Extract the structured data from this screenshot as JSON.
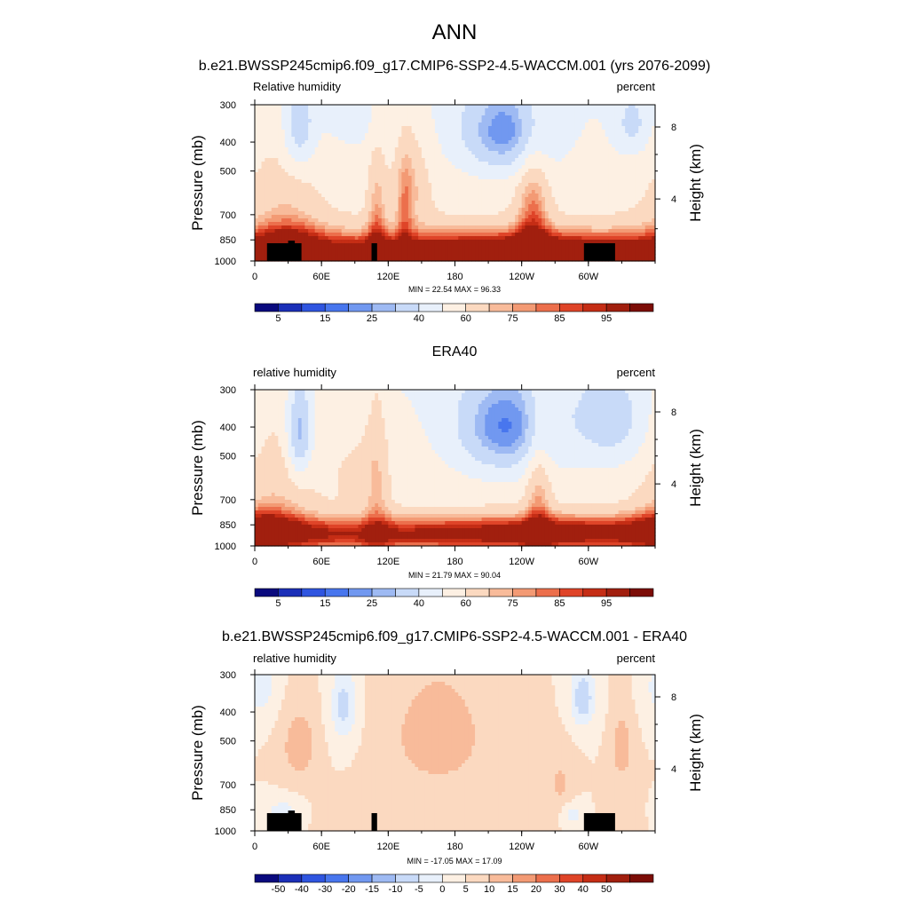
{
  "figure": {
    "title": "ANN"
  },
  "chart_data": [
    {
      "type": "heatmap",
      "subtitle": "b.e21.BWSSP245cmip6.f09_g17.CMIP6-SSP2-4.5-WACCM.001 (yrs 2076-2099)",
      "left_label": "Relative humidity",
      "right_label": "percent",
      "ylabel": "Pressure (mb)",
      "ylabel_right": "Height (km)",
      "x_ticks": [
        "0",
        "60E",
        "120E",
        "180",
        "120W",
        "60W"
      ],
      "y_ticks": [
        "300",
        "400",
        "500",
        "700",
        "850",
        "1000"
      ],
      "height_ticks": [
        "8",
        "4"
      ],
      "stats": "MIN = 22.54  MAX = 96.33",
      "colorbar_labels": [
        "5",
        "15",
        "25",
        "40",
        "60",
        "75",
        "85",
        "95"
      ],
      "palette": [
        "#0a0a7e",
        "#1b2fb8",
        "#2f55e0",
        "#4876ee",
        "#7198f0",
        "#9ebaf3",
        "#c8daf8",
        "#e8f0fb",
        "#fdf0e3",
        "#fbd9c0",
        "#f8bb9a",
        "#f39a74",
        "#ec6f4c",
        "#df4428",
        "#c52d15",
        "#a11f0e",
        "#7c0d07"
      ],
      "topography": true,
      "fields": {
        "blobs": [
          {
            "lon": 125,
            "p": 930,
            "wx": 150,
            "wy": 95,
            "a": 38
          },
          {
            "lon": 275,
            "p": 930,
            "wx": 70,
            "wy": 90,
            "a": 30
          },
          {
            "lon": 30,
            "p": 900,
            "wx": 20,
            "wy": 120,
            "a": 25
          },
          {
            "lon": 250,
            "p": 820,
            "wx": 10,
            "wy": 300,
            "a": 28
          },
          {
            "lon": 110,
            "p": 800,
            "wx": 6,
            "wy": 300,
            "a": 20
          },
          {
            "lon": 135,
            "p": 760,
            "wx": 5,
            "wy": 250,
            "a": 15
          },
          {
            "lon": 140,
            "p": 550,
            "wx": 12,
            "wy": 150,
            "a": 15
          },
          {
            "lon": 25,
            "p": 600,
            "wx": 25,
            "wy": 250,
            "a": 10
          },
          {
            "lon": 225,
            "p": 370,
            "wx": 28,
            "wy": 90,
            "a": -30
          },
          {
            "lon": 40,
            "p": 360,
            "wx": 10,
            "wy": 90,
            "a": -22
          },
          {
            "lon": 340,
            "p": 350,
            "wx": 12,
            "wy": 60,
            "a": -15
          },
          {
            "lon": 90,
            "p": 330,
            "wx": 20,
            "wy": 60,
            "a": -6
          }
        ],
        "base": 50,
        "vert": 0.02
      }
    },
    {
      "type": "heatmap",
      "subtitle": "ERA40",
      "left_label": "relative humidity",
      "right_label": "percent",
      "ylabel": "Pressure (mb)",
      "ylabel_right": "Height (km)",
      "x_ticks": [
        "0",
        "60E",
        "120E",
        "180",
        "120W",
        "60W"
      ],
      "y_ticks": [
        "300",
        "400",
        "500",
        "700",
        "850",
        "1000"
      ],
      "height_ticks": [
        "8",
        "4"
      ],
      "stats": "MIN = 21.79  MAX = 90.04",
      "colorbar_labels": [
        "5",
        "15",
        "25",
        "40",
        "60",
        "75",
        "85",
        "95"
      ],
      "palette": [
        "#0a0a7e",
        "#1b2fb8",
        "#2f55e0",
        "#4876ee",
        "#7198f0",
        "#9ebaf3",
        "#c8daf8",
        "#e8f0fb",
        "#fdf0e3",
        "#fbd9c0",
        "#f8bb9a",
        "#f39a74",
        "#ec6f4c",
        "#df4428",
        "#c52d15",
        "#a11f0e",
        "#7c0d07"
      ],
      "topography": false,
      "fields": {
        "blobs": [
          {
            "lon": 130,
            "p": 910,
            "wx": 140,
            "wy": 80,
            "a": 35
          },
          {
            "lon": 290,
            "p": 900,
            "wx": 70,
            "wy": 80,
            "a": 28
          },
          {
            "lon": 10,
            "p": 880,
            "wx": 20,
            "wy": 100,
            "a": 22
          },
          {
            "lon": 255,
            "p": 800,
            "wx": 8,
            "wy": 350,
            "a": 20
          },
          {
            "lon": 110,
            "p": 700,
            "wx": 8,
            "wy": 400,
            "a": 15
          },
          {
            "lon": 20,
            "p": 600,
            "wx": 25,
            "wy": 300,
            "a": 12
          },
          {
            "lon": 225,
            "p": 400,
            "wx": 30,
            "wy": 110,
            "a": -32
          },
          {
            "lon": 40,
            "p": 420,
            "wx": 8,
            "wy": 110,
            "a": -30
          },
          {
            "lon": 320,
            "p": 380,
            "wx": 25,
            "wy": 100,
            "a": -18
          },
          {
            "lon": 90,
            "p": 550,
            "wx": 15,
            "wy": 120,
            "a": 8
          }
        ],
        "base": 50,
        "vert": 0.015
      }
    },
    {
      "type": "heatmap",
      "subtitle": "b.e21.BWSSP245cmip6.f09_g17.CMIP6-SSP2-4.5-WACCM.001 - ERA40",
      "left_label": "relative humidity",
      "right_label": "percent",
      "ylabel": "Pressure (mb)",
      "ylabel_right": "Height (km)",
      "x_ticks": [
        "0",
        "60E",
        "120E",
        "180",
        "120W",
        "60W"
      ],
      "y_ticks": [
        "300",
        "400",
        "500",
        "700",
        "850",
        "1000"
      ],
      "height_ticks": [
        "8",
        "4"
      ],
      "stats": "MIN = -17.05  MAX = 17.09",
      "colorbar_labels": [
        "-50",
        "-40",
        "-30",
        "-20",
        "-15",
        "-10",
        "-5",
        "0",
        "5",
        "10",
        "15",
        "20",
        "30",
        "40",
        "50"
      ],
      "palette": [
        "#0a0a7e",
        "#1b2fb8",
        "#2f55e0",
        "#4876ee",
        "#7198f0",
        "#9ebaf3",
        "#c8daf8",
        "#e8f0fb",
        "#fdf0e3",
        "#fbd9c0",
        "#f8bb9a",
        "#f39a74",
        "#ec6f4c",
        "#df4428",
        "#c52d15",
        "#a11f0e",
        "#7c0d07"
      ],
      "topography": true,
      "fields": {
        "blobs": [
          {
            "lon": 165,
            "p": 480,
            "wx": 30,
            "wy": 150,
            "a": 9
          },
          {
            "lon": 40,
            "p": 520,
            "wx": 10,
            "wy": 90,
            "a": 10
          },
          {
            "lon": 330,
            "p": 530,
            "wx": 6,
            "wy": 90,
            "a": 10
          },
          {
            "lon": 275,
            "p": 700,
            "wx": 8,
            "wy": 120,
            "a": 6
          },
          {
            "lon": 80,
            "p": 380,
            "wx": 8,
            "wy": 80,
            "a": -12
          },
          {
            "lon": 295,
            "p": 360,
            "wx": 8,
            "wy": 60,
            "a": -14
          },
          {
            "lon": 5,
            "p": 330,
            "wx": 10,
            "wy": 60,
            "a": -8
          },
          {
            "lon": 25,
            "p": 880,
            "wx": 10,
            "wy": 60,
            "a": -10
          },
          {
            "lon": 285,
            "p": 880,
            "wx": 8,
            "wy": 60,
            "a": -8
          },
          {
            "lon": 180,
            "p": 900,
            "wx": 60,
            "wy": 80,
            "a": 3
          }
        ],
        "base": 0,
        "vert": 0
      }
    }
  ]
}
